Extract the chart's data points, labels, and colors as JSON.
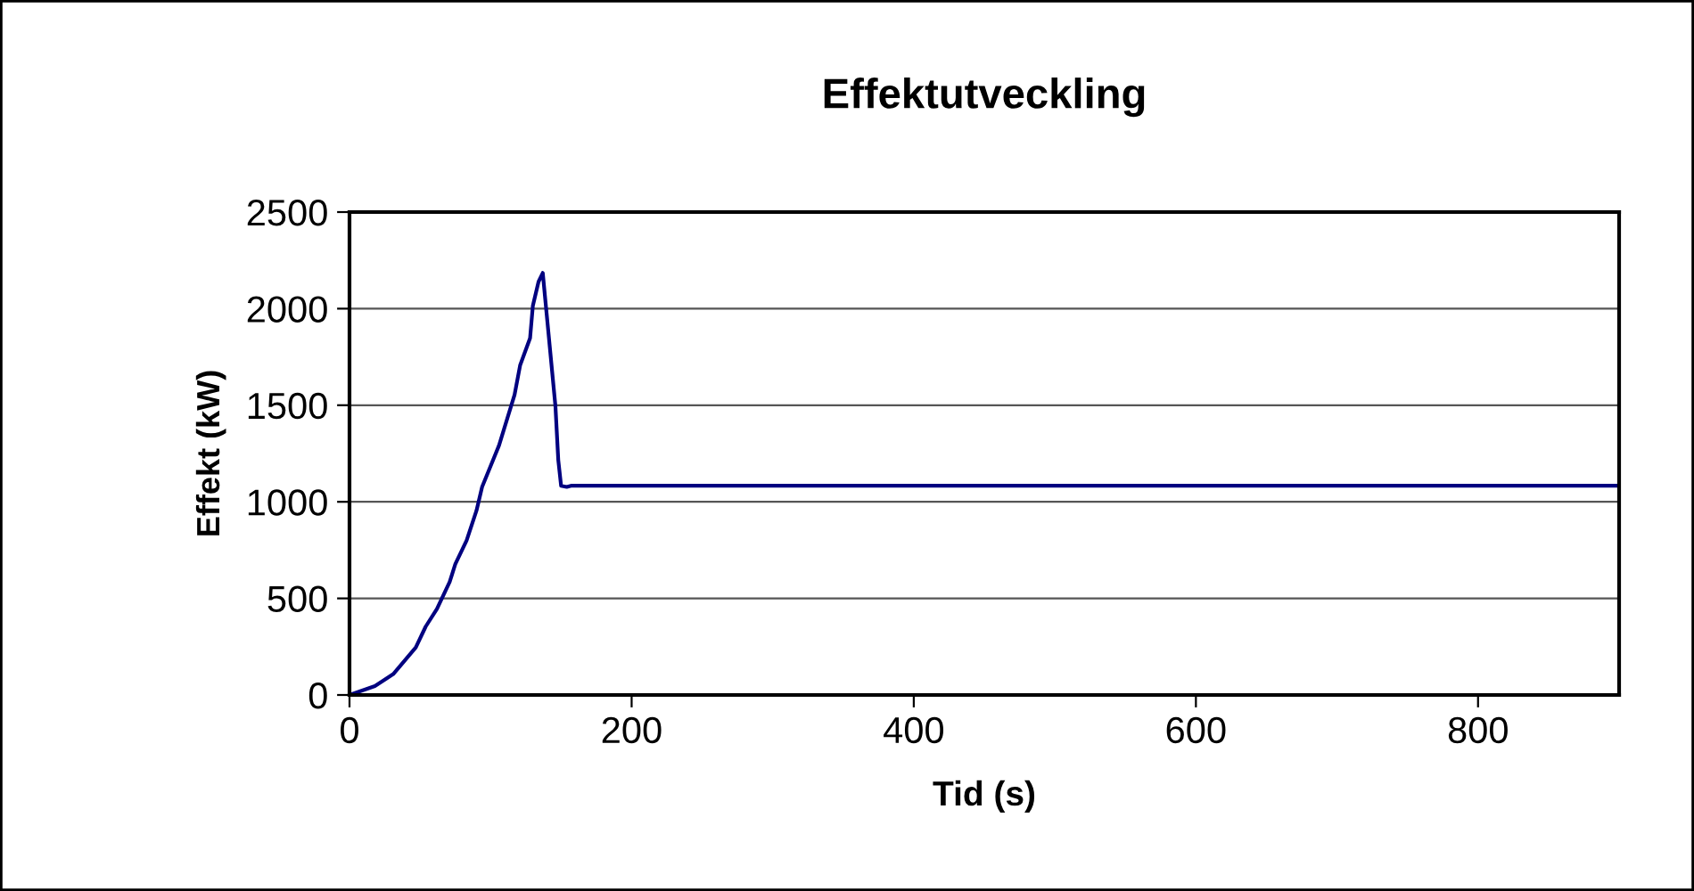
{
  "chart_data": {
    "type": "line",
    "title": "Effektutveckling",
    "xlabel": "Tid (s)",
    "ylabel": "Effekt (kW)",
    "x": [
      0,
      18,
      31,
      47,
      54,
      62,
      71,
      75,
      83,
      90,
      94,
      106,
      117,
      121,
      128,
      130,
      134,
      137,
      139,
      146,
      148,
      150,
      154,
      157,
      900
    ],
    "series": [
      {
        "color": "#000080",
        "values": [
          0,
          46,
          108,
          246,
          354,
          446,
          585,
          677,
          800,
          954,
          1077,
          1292,
          1554,
          1708,
          1847,
          2016,
          2139,
          2185,
          2031,
          1493,
          1216,
          1083,
          1077,
          1083,
          1083
        ]
      }
    ],
    "xlim": [
      0,
      900
    ],
    "ylim": [
      0,
      2500
    ],
    "xticks": [
      0,
      200,
      400,
      600,
      800
    ],
    "yticks": [
      0,
      500,
      1000,
      1500,
      2000,
      2500
    ],
    "grid": "y",
    "legend": false,
    "marker": "none",
    "line_style": "solid"
  }
}
